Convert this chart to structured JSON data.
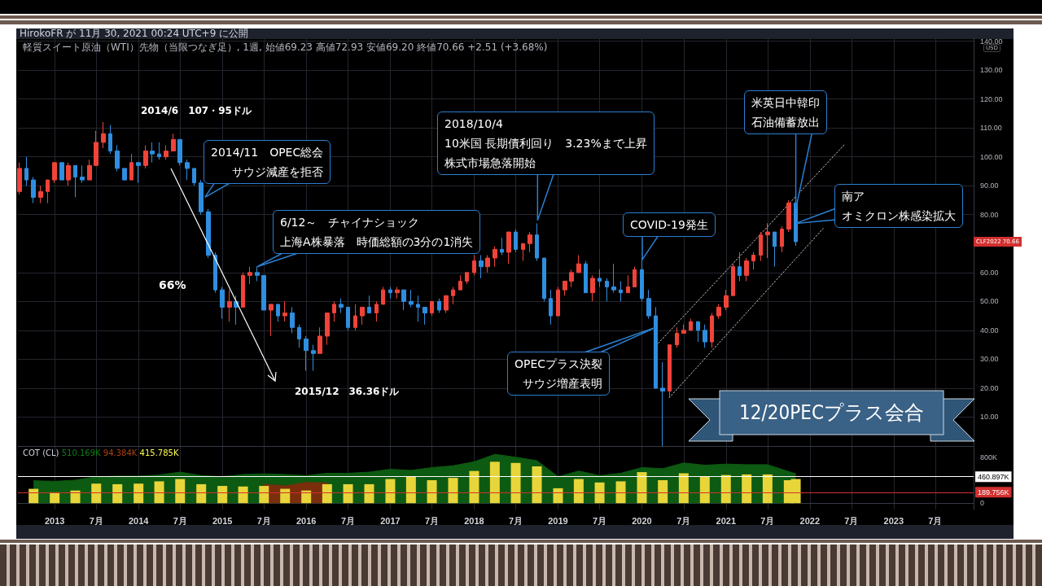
{
  "chart_data": [
    {
      "type": "candlestick",
      "title": "軽質スイート原油（WTI）先物（当限つなぎ足）, 1週, 始値69.23 高値72.93 安値69.20 終値70.66 +2.51 (+3.68%)",
      "x": [
        "2012-08",
        "2012-09",
        "2012-10",
        "2012-11",
        "2012-12",
        "2013-01",
        "2013-02",
        "2013-03",
        "2013-04",
        "2013-05",
        "2013-06",
        "2013-07",
        "2013-08",
        "2013-09",
        "2013-10",
        "2013-11",
        "2013-12",
        "2014-01",
        "2014-02",
        "2014-03",
        "2014-04",
        "2014-05",
        "2014-06",
        "2014-07",
        "2014-08",
        "2014-09",
        "2014-10",
        "2014-11",
        "2014-12",
        "2015-01",
        "2015-02",
        "2015-03",
        "2015-04",
        "2015-05",
        "2015-06",
        "2015-07",
        "2015-08",
        "2015-09",
        "2015-10",
        "2015-11",
        "2015-12",
        "2016-01",
        "2016-02",
        "2016-03",
        "2016-04",
        "2016-05",
        "2016-06",
        "2016-07",
        "2016-08",
        "2016-09",
        "2016-10",
        "2016-11",
        "2016-12",
        "2017-01",
        "2017-02",
        "2017-03",
        "2017-04",
        "2017-05",
        "2017-06",
        "2017-07",
        "2017-08",
        "2017-09",
        "2017-10",
        "2017-11",
        "2017-12",
        "2018-01",
        "2018-02",
        "2018-03",
        "2018-04",
        "2018-05",
        "2018-06",
        "2018-07",
        "2018-08",
        "2018-09",
        "2018-10",
        "2018-11",
        "2018-12",
        "2019-01",
        "2019-02",
        "2019-03",
        "2019-04",
        "2019-05",
        "2019-06",
        "2019-07",
        "2019-08",
        "2019-09",
        "2019-10",
        "2019-11",
        "2019-12",
        "2020-01",
        "2020-02",
        "2020-03",
        "2020-04",
        "2020-05",
        "2020-06",
        "2020-07",
        "2020-08",
        "2020-09",
        "2020-10",
        "2020-11",
        "2020-12",
        "2021-01",
        "2021-02",
        "2021-03",
        "2021-04",
        "2021-05",
        "2021-06",
        "2021-07",
        "2021-08",
        "2021-09",
        "2021-10",
        "2021-11"
      ],
      "ohlc": [
        [
          88,
          98,
          87,
          96
        ],
        [
          96,
          100,
          90,
          92
        ],
        [
          92,
          93,
          84,
          86
        ],
        [
          86,
          90,
          84,
          88
        ],
        [
          88,
          92,
          84,
          92
        ],
        [
          92,
          98,
          91,
          98
        ],
        [
          98,
          98,
          92,
          92
        ],
        [
          92,
          98,
          90,
          97
        ],
        [
          97,
          97,
          86,
          93
        ],
        [
          93,
          97,
          91,
          92
        ],
        [
          92,
          99,
          92,
          97
        ],
        [
          97,
          109,
          97,
          105
        ],
        [
          105,
          112,
          103,
          108
        ],
        [
          108,
          111,
          101,
          102
        ],
        [
          102,
          104,
          95,
          96
        ],
        [
          96,
          96,
          92,
          92
        ],
        [
          92,
          101,
          92,
          98
        ],
        [
          98,
          98,
          91,
          97
        ],
        [
          97,
          104,
          96,
          102
        ],
        [
          102,
          105,
          98,
          101
        ],
        [
          101,
          105,
          99,
          100
        ],
        [
          100,
          104,
          99,
          102
        ],
        [
          102,
          108,
          102,
          106
        ],
        [
          106,
          106,
          97,
          98
        ],
        [
          98,
          99,
          92,
          96
        ],
        [
          96,
          96,
          90,
          91
        ],
        [
          91,
          92,
          80,
          81
        ],
        [
          81,
          82,
          65,
          66
        ],
        [
          66,
          67,
          53,
          54
        ],
        [
          54,
          55,
          44,
          48
        ],
        [
          48,
          54,
          43,
          50
        ],
        [
          50,
          52,
          42,
          48
        ],
        [
          48,
          60,
          48,
          59
        ],
        [
          59,
          62,
          56,
          60
        ],
        [
          60,
          62,
          57,
          59
        ],
        [
          59,
          59,
          47,
          47
        ],
        [
          47,
          49,
          38,
          49
        ],
        [
          49,
          49,
          43,
          45
        ],
        [
          45,
          50,
          43,
          46
        ],
        [
          46,
          48,
          39,
          41
        ],
        [
          41,
          42,
          34,
          37
        ],
        [
          37,
          38,
          26,
          33
        ],
        [
          33,
          35,
          26,
          32
        ],
        [
          32,
          41,
          32,
          38
        ],
        [
          38,
          46,
          35,
          46
        ],
        [
          46,
          50,
          43,
          49
        ],
        [
          49,
          51,
          46,
          48
        ],
        [
          48,
          48,
          40,
          41
        ],
        [
          41,
          49,
          40,
          45
        ],
        [
          45,
          48,
          42,
          48
        ],
        [
          48,
          52,
          46,
          46
        ],
        [
          46,
          50,
          43,
          49
        ],
        [
          49,
          55,
          49,
          54
        ],
        [
          54,
          55,
          51,
          53
        ],
        [
          53,
          55,
          51,
          54
        ],
        [
          54,
          54,
          47,
          50
        ],
        [
          50,
          54,
          48,
          49
        ],
        [
          49,
          52,
          43,
          48
        ],
        [
          48,
          48,
          42,
          46
        ],
        [
          46,
          50,
          45,
          50
        ],
        [
          50,
          51,
          46,
          47
        ],
        [
          47,
          52,
          46,
          52
        ],
        [
          52,
          55,
          49,
          54
        ],
        [
          54,
          59,
          54,
          57
        ],
        [
          57,
          60,
          56,
          60
        ],
        [
          60,
          66,
          59,
          64
        ],
        [
          64,
          66,
          58,
          62
        ],
        [
          62,
          66,
          60,
          65
        ],
        [
          65,
          69,
          62,
          68
        ],
        [
          68,
          72,
          66,
          67
        ],
        [
          67,
          74,
          63,
          74
        ],
        [
          74,
          75,
          67,
          68
        ],
        [
          68,
          70,
          64,
          70
        ],
        [
          70,
          74,
          67,
          73
        ],
        [
          73,
          77,
          64,
          65
        ],
        [
          65,
          65,
          50,
          51
        ],
        [
          51,
          54,
          42,
          45
        ],
        [
          45,
          55,
          45,
          54
        ],
        [
          54,
          57,
          52,
          57
        ],
        [
          57,
          61,
          55,
          60
        ],
        [
          60,
          66,
          60,
          63
        ],
        [
          63,
          64,
          53,
          53
        ],
        [
          53,
          59,
          50,
          58
        ],
        [
          58,
          61,
          55,
          57
        ],
        [
          57,
          58,
          50,
          55
        ],
        [
          55,
          63,
          53,
          54
        ],
        [
          54,
          57,
          50,
          53
        ],
        [
          53,
          59,
          53,
          55
        ],
        [
          55,
          62,
          55,
          61
        ],
        [
          61,
          65,
          50,
          51
        ],
        [
          51,
          54,
          44,
          45
        ],
        [
          45,
          48,
          20,
          20
        ],
        [
          20,
          29,
          0,
          19
        ],
        [
          19,
          35,
          17,
          35
        ],
        [
          35,
          41,
          34,
          39
        ],
        [
          39,
          42,
          39,
          40
        ],
        [
          40,
          44,
          40,
          43
        ],
        [
          43,
          43,
          36,
          40
        ],
        [
          40,
          42,
          34,
          36
        ],
        [
          36,
          46,
          34,
          45
        ],
        [
          45,
          49,
          44,
          48
        ],
        [
          48,
          54,
          47,
          52
        ],
        [
          52,
          63,
          52,
          62
        ],
        [
          62,
          67,
          57,
          59
        ],
        [
          59,
          65,
          57,
          64
        ],
        [
          64,
          67,
          61,
          66
        ],
        [
          66,
          74,
          64,
          73
        ],
        [
          73,
          77,
          65,
          74
        ],
        [
          74,
          74,
          62,
          69
        ],
        [
          69,
          76,
          67,
          75
        ],
        [
          75,
          85,
          74,
          84
        ],
        [
          84,
          84,
          69.2,
          70.66
        ]
      ],
      "colors": [
        "#f0433a",
        "#2f8ee0",
        "#2f8ee0",
        "#f0433a",
        "#f0433a",
        "#f0433a",
        "#2f8ee0",
        "#f0433a",
        "#2f8ee0",
        "#2f8ee0",
        "#f0433a",
        "#f0433a",
        "#f0433a",
        "#2f8ee0",
        "#2f8ee0",
        "#2f8ee0",
        "#f0433a",
        "#2f8ee0",
        "#f0433a",
        "#2f8ee0",
        "#2f8ee0",
        "#f0433a",
        "#f0433a",
        "#2f8ee0",
        "#2f8ee0",
        "#2f8ee0",
        "#2f8ee0",
        "#2f8ee0",
        "#2f8ee0",
        "#2f8ee0",
        "#f0433a",
        "#2f8ee0",
        "#f0433a",
        "#f0433a",
        "#2f8ee0",
        "#2f8ee0",
        "#f0433a",
        "#2f8ee0",
        "#f0433a",
        "#2f8ee0",
        "#2f8ee0",
        "#2f8ee0",
        "#2f8ee0",
        "#f0433a",
        "#f0433a",
        "#f0433a",
        "#2f8ee0",
        "#2f8ee0",
        "#f0433a",
        "#f0433a",
        "#2f8ee0",
        "#f0433a",
        "#f0433a",
        "#2f8ee0",
        "#f0433a",
        "#2f8ee0",
        "#2f8ee0",
        "#2f8ee0",
        "#2f8ee0",
        "#f0433a",
        "#2f8ee0",
        "#f0433a",
        "#f0433a",
        "#f0433a",
        "#f0433a",
        "#f0433a",
        "#2f8ee0",
        "#f0433a",
        "#f0433a",
        "#2f8ee0",
        "#f0433a",
        "#2f8ee0",
        "#f0433a",
        "#f0433a",
        "#2f8ee0",
        "#2f8ee0",
        "#2f8ee0",
        "#f0433a",
        "#f0433a",
        "#f0433a",
        "#f0433a",
        "#2f8ee0",
        "#f0433a",
        "#2f8ee0",
        "#2f8ee0",
        "#2f8ee0",
        "#2f8ee0",
        "#f0433a",
        "#f0433a",
        "#2f8ee0",
        "#2f8ee0",
        "#2f8ee0",
        "#2f8ee0",
        "#f0433a",
        "#f0433a",
        "#f0433a",
        "#f0433a",
        "#2f8ee0",
        "#2f8ee0",
        "#f0433a",
        "#f0433a",
        "#f0433a",
        "#f0433a",
        "#2f8ee0",
        "#f0433a",
        "#f0433a",
        "#f0433a",
        "#f0433a",
        "#2f8ee0",
        "#f0433a",
        "#f0433a",
        "#2f8ee0"
      ],
      "series": [
        {
          "type": "line",
          "x": [
            "2020-03-13",
            "2022-06-03"
          ],
          "values": [
            35.6,
            104.4
          ],
          "color": "#d0d0d0",
          "line_style": "dotted"
        },
        {
          "type": "line",
          "x": [
            "2020-04-29",
            "2022-02-28"
          ],
          "values": [
            16.7,
            75.2
          ],
          "color": "#d0d0d0",
          "line_style": "dotted"
        }
      ],
      "marker": "none",
      "xlim": [
        "2012-07-25",
        "2023-12-15"
      ],
      "xticks": [
        {
          "value": "2013-01",
          "label": null
        },
        {
          "value": "2013-07",
          "label": null
        },
        {
          "value": "2014-01",
          "label": null
        },
        {
          "value": "2014-07",
          "label": null
        },
        {
          "value": "2015-01",
          "label": null
        },
        {
          "value": "2015-07",
          "label": null
        },
        {
          "value": "2016-01",
          "label": null
        },
        {
          "value": "2016-07",
          "label": null
        },
        {
          "value": "2017-01",
          "label": null
        },
        {
          "value": "2017-07",
          "label": null
        },
        {
          "value": "2018-01",
          "label": null
        },
        {
          "value": "2018-07",
          "label": null
        },
        {
          "value": "2019-01",
          "label": null
        },
        {
          "value": "2019-07",
          "label": null
        },
        {
          "value": "2020-01",
          "label": null
        },
        {
          "value": "2020-07",
          "label": null
        },
        {
          "value": "2021-01",
          "label": null
        },
        {
          "value": "2021-07",
          "label": null
        },
        {
          "value": "2022-01",
          "label": null
        },
        {
          "value": "2022-07",
          "label": null
        },
        {
          "value": "2023-01",
          "label": null
        },
        {
          "value": "2023-07",
          "label": null
        }
      ],
      "ylim": [
        0,
        141
      ],
      "yticks": [
        {
          "value": 10,
          "label": "10.00"
        },
        {
          "value": 20,
          "label": "20.00"
        },
        {
          "value": 30,
          "label": "30.00"
        },
        {
          "value": 40,
          "label": "40.00"
        },
        {
          "value": 50,
          "label": "50.00"
        },
        {
          "value": 60,
          "label": "60.00"
        },
        {
          "value": 80,
          "label": "80.00"
        },
        {
          "value": 90,
          "label": "90.00"
        },
        {
          "value": 100,
          "label": "100.00"
        },
        {
          "value": 110,
          "label": "110.00"
        },
        {
          "value": 120,
          "label": "120.00"
        },
        {
          "value": 130,
          "label": "130.00"
        },
        {
          "value": 140,
          "label": "140.00"
        }
      ],
      "tick_labels": "y",
      "grid": true,
      "annotations": [
        "HirokoFR が 11月 30, 2021 00:24 UTC+9 に公開",
        "2014/6　107・95ドル",
        {
          "text": "2014/11　OPEC総会サウジ減産を拒否",
          "x": "2014-10-17",
          "y": 86
        },
        {
          "text": "6/12～　チャイナショック上海A株暴落　時価総額の3分の1消失",
          "x": "2015-06-01",
          "y": 62
        },
        "66%",
        "2015/12　36.36ドル",
        {
          "text": "2018/10/410米国 長期債利回り　3.23%まで上昇株式市場急落開始",
          "x": "2018-10-04",
          "y": 78
        },
        {
          "text": "COVID-19発生",
          "x": "2020-01-03",
          "y": 64.5
        },
        {
          "text": "OPECプラス決裂サウジ増産表明",
          "x": "2020-03-01",
          "y": 41
        },
        {
          "text": "米英日中韓印石油備蓄放出",
          "x": "2021-11",
          "y": 82
        },
        {
          "text": "南アオミクロン株感染拡大",
          "x": "2021-11",
          "y": 77
        },
        "12/20PECプラス会合",
        "CLF2022 70.66",
        "USD"
      ]
    },
    {
      "type": "bar",
      "title": "COT (CL)",
      "x": [
        "2012-10",
        "2013-01",
        "2013-04",
        "2013-07",
        "2013-10",
        "2014-01",
        "2014-04",
        "2014-07",
        "2014-10",
        "2015-01",
        "2015-04",
        "2015-07",
        "2015-10",
        "2016-01",
        "2016-04",
        "2016-07",
        "2016-10",
        "2017-01",
        "2017-04",
        "2017-07",
        "2017-10",
        "2018-01",
        "2018-04",
        "2018-07",
        "2018-10",
        "2019-01",
        "2019-04",
        "2019-07",
        "2019-10",
        "2020-01",
        "2020-04",
        "2020-07",
        "2020-10",
        "2021-01",
        "2021-04",
        "2021-07",
        "2021-10",
        "2021-11"
      ],
      "series": [
        {
          "type": "area",
          "color": "#0d5a12",
          "values": [
            390,
            380,
            400,
            460,
            470,
            470,
            490,
            540,
            480,
            460,
            500,
            510,
            500,
            480,
            520,
            520,
            540,
            590,
            570,
            620,
            650,
            720,
            850,
            800,
            740,
            460,
            560,
            480,
            520,
            620,
            600,
            700,
            660,
            680,
            670,
            670,
            550,
            510
          ]
        },
        {
          "type": "area",
          "color": "#7a2e0c",
          "values": [
            null,
            null,
            null,
            null,
            null,
            null,
            null,
            null,
            null,
            null,
            null,
            330,
            300,
            360,
            350,
            null,
            null,
            null,
            null,
            null,
            null,
            null,
            null,
            null,
            null,
            null,
            null,
            null,
            null,
            null,
            null,
            null,
            null,
            null,
            null,
            null,
            null,
            null
          ]
        },
        {
          "type": "bar",
          "color": "#e8d53a",
          "values": [
            250,
            190,
            220,
            340,
            330,
            340,
            380,
            420,
            330,
            300,
            290,
            300,
            250,
            220,
            330,
            330,
            330,
            420,
            460,
            400,
            440,
            560,
            720,
            700,
            640,
            260,
            420,
            360,
            380,
            540,
            400,
            520,
            470,
            490,
            500,
            500,
            400,
            420
          ]
        }
      ],
      "marker": "none",
      "xlim": [
        "2012-07-25",
        "2023-12-15"
      ],
      "xticks": [
        {
          "value": "2013-01",
          "label": "2013"
        },
        {
          "value": "2013-07",
          "label": "7月"
        },
        {
          "value": "2014-01",
          "label": "2014"
        },
        {
          "value": "2014-07",
          "label": "7月"
        },
        {
          "value": "2015-01",
          "label": "2015"
        },
        {
          "value": "2015-07",
          "label": "7月"
        },
        {
          "value": "2016-01",
          "label": "2016"
        },
        {
          "value": "2016-07",
          "label": "7月"
        },
        {
          "value": "2017-01",
          "label": "2017"
        },
        {
          "value": "2017-07",
          "label": "7月"
        },
        {
          "value": "2018-01",
          "label": "2018"
        },
        {
          "value": "2018-07",
          "label": "7月"
        },
        {
          "value": "2019-01",
          "label": "2019"
        },
        {
          "value": "2019-07",
          "label": "7月"
        },
        {
          "value": "2020-01",
          "label": "2020"
        },
        {
          "value": "2020-07",
          "label": "7月"
        },
        {
          "value": "2021-01",
          "label": "2021"
        },
        {
          "value": "2021-07",
          "label": "7月"
        },
        {
          "value": "2022-01",
          "label": "2022"
        },
        {
          "value": "2022-07",
          "label": "7月"
        },
        {
          "value": "2023-01",
          "label": "2023"
        },
        {
          "value": "2023-07",
          "label": "7月"
        }
      ],
      "ylim": [
        -110,
        980
      ],
      "yticks": [
        {
          "value": 0,
          "label": "0"
        },
        {
          "value": 800,
          "label": "800K"
        }
      ],
      "grid": "x",
      "ref_lines": [
        {
          "axis": "y",
          "value": 460.897,
          "label": "460.897K",
          "color": "#ffffff"
        },
        {
          "axis": "y",
          "value": 189.756,
          "label": "189.756K",
          "color": "#d32f2f"
        }
      ],
      "annotations": [
        "510.169K",
        "94.384K",
        "415.785K"
      ]
    }
  ]
}
